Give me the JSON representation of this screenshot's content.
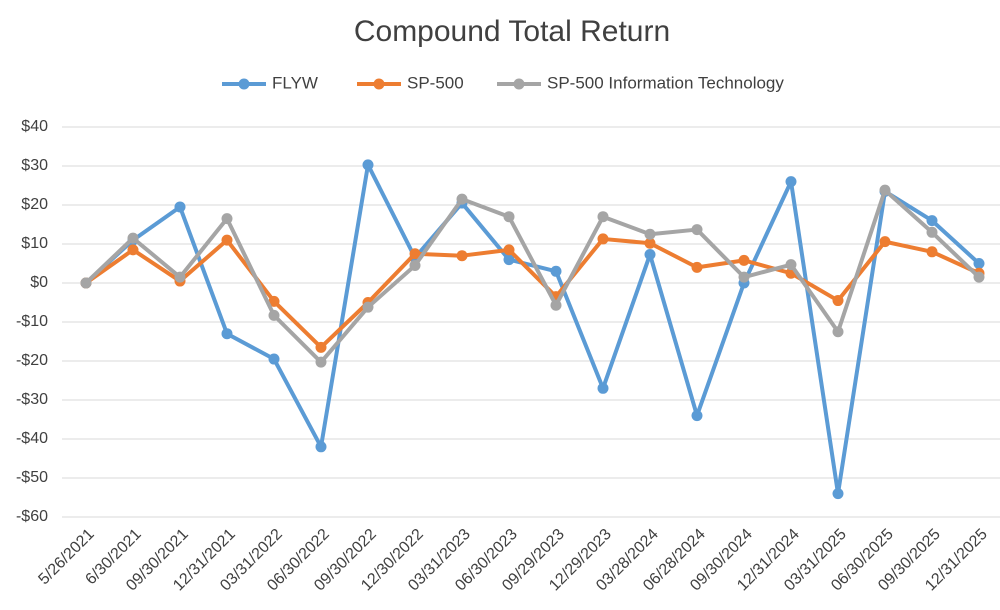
{
  "chart_data": {
    "type": "line",
    "title": "Compound Total Return",
    "categories": [
      "5/26/2021",
      "6/30/2021",
      "09/30/2021",
      "12/31/2021",
      "03/31/2022",
      "06/30/2022",
      "09/30/2022",
      "12/30/2022",
      "03/31/2023",
      "06/30/2023",
      "09/29/2023",
      "12/29/2023",
      "03/28/2024",
      "06/28/2024",
      "09/30/2024",
      "12/31/2024",
      "03/31/2025",
      "06/30/2025",
      "09/30/2025",
      "12/31/2025"
    ],
    "series": [
      {
        "name": "FLYW",
        "color": "#5b9bd5",
        "values": [
          0,
          11,
          19.5,
          -13,
          -19.5,
          -42,
          30.3,
          6.5,
          20.5,
          6,
          3,
          -27,
          7.3,
          -34,
          0,
          26,
          -54,
          23.5,
          16,
          5
        ]
      },
      {
        "name": "SP-500",
        "color": "#ed7d31",
        "values": [
          0,
          8.5,
          0.5,
          11,
          -4.7,
          -16.5,
          -5,
          7.5,
          7,
          8.5,
          -3.5,
          11.3,
          10.2,
          4,
          5.8,
          2.5,
          -4.5,
          10.6,
          8,
          2.5
        ]
      },
      {
        "name": "SP-500 Information Technology",
        "color": "#a5a5a5",
        "values": [
          0,
          11.5,
          1.5,
          16.5,
          -8.3,
          -20.3,
          -6.2,
          4.5,
          21.5,
          17,
          -5.7,
          17,
          12.5,
          13.7,
          1.5,
          4.7,
          -12.5,
          23.8,
          13,
          1.5
        ]
      }
    ],
    "ylim": [
      -60,
      40
    ],
    "yticks": [
      {
        "value": -60,
        "label": "-$60"
      },
      {
        "value": -50,
        "label": "-$50"
      },
      {
        "value": -40,
        "label": "-$40"
      },
      {
        "value": -30,
        "label": "-$30"
      },
      {
        "value": -20,
        "label": "-$20"
      },
      {
        "value": -10,
        "label": "-$10"
      },
      {
        "value": 0,
        "label": "$0"
      },
      {
        "value": 10,
        "label": "$10"
      },
      {
        "value": 20,
        "label": "$20"
      },
      {
        "value": 30,
        "label": "$30"
      },
      {
        "value": 40,
        "label": "$40"
      }
    ],
    "grid": true,
    "legend": "top"
  }
}
